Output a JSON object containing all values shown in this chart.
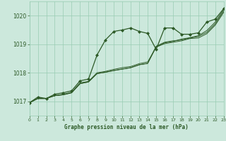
{
  "xlabel": "Graphe pression niveau de la mer (hPa)",
  "xlim": [
    0,
    23
  ],
  "ylim": [
    1016.5,
    1020.5
  ],
  "yticks": [
    1017,
    1018,
    1019,
    1020
  ],
  "xticks": [
    0,
    1,
    2,
    3,
    4,
    5,
    6,
    7,
    8,
    9,
    10,
    11,
    12,
    13,
    14,
    15,
    16,
    17,
    18,
    19,
    20,
    21,
    22,
    23
  ],
  "bg_color": "#cce8dc",
  "grid_color": "#99ccb3",
  "line_color": "#2d5a27",
  "series1_x": [
    0,
    1,
    2,
    3,
    4,
    5,
    6,
    7,
    8,
    9,
    10,
    11,
    12,
    13,
    14,
    15,
    16,
    17,
    18,
    19,
    20,
    21,
    22,
    23
  ],
  "series1_y": [
    1016.95,
    1017.15,
    1017.1,
    1017.25,
    1017.3,
    1017.37,
    1017.72,
    1017.78,
    1018.62,
    1019.15,
    1019.45,
    1019.5,
    1019.57,
    1019.45,
    1019.38,
    1018.82,
    1019.57,
    1019.57,
    1019.35,
    1019.35,
    1019.4,
    1019.78,
    1019.88,
    1020.25
  ],
  "series2_x": [
    0,
    1,
    2,
    3,
    4,
    5,
    6,
    7,
    8,
    9,
    10,
    11,
    12,
    13,
    14,
    15,
    16,
    17,
    18,
    19,
    20,
    21,
    22,
    23
  ],
  "series2_y": [
    1016.95,
    1017.1,
    1017.1,
    1017.2,
    1017.25,
    1017.32,
    1017.65,
    1017.7,
    1018.0,
    1018.05,
    1018.12,
    1018.18,
    1018.22,
    1018.32,
    1018.38,
    1018.9,
    1019.05,
    1019.1,
    1019.18,
    1019.23,
    1019.3,
    1019.48,
    1019.78,
    1020.22
  ],
  "series3_x": [
    0,
    1,
    2,
    3,
    4,
    5,
    6,
    7,
    8,
    9,
    10,
    11,
    12,
    13,
    14,
    15,
    16,
    17,
    18,
    19,
    20,
    21,
    22,
    23
  ],
  "series3_y": [
    1016.95,
    1017.1,
    1017.1,
    1017.2,
    1017.23,
    1017.3,
    1017.62,
    1017.68,
    1017.97,
    1018.02,
    1018.08,
    1018.13,
    1018.18,
    1018.28,
    1018.33,
    1018.93,
    1019.07,
    1019.12,
    1019.15,
    1019.22,
    1019.27,
    1019.42,
    1019.72,
    1020.17
  ],
  "series4_x": [
    0,
    1,
    2,
    3,
    4,
    5,
    6,
    7,
    8,
    9,
    10,
    11,
    12,
    13,
    14,
    15,
    16,
    17,
    18,
    19,
    20,
    21,
    22,
    23
  ],
  "series4_y": [
    1016.95,
    1017.1,
    1017.1,
    1017.2,
    1017.23,
    1017.3,
    1017.62,
    1017.68,
    1017.97,
    1018.02,
    1018.08,
    1018.13,
    1018.18,
    1018.28,
    1018.33,
    1018.9,
    1019.02,
    1019.07,
    1019.12,
    1019.2,
    1019.22,
    1019.37,
    1019.67,
    1020.12
  ]
}
